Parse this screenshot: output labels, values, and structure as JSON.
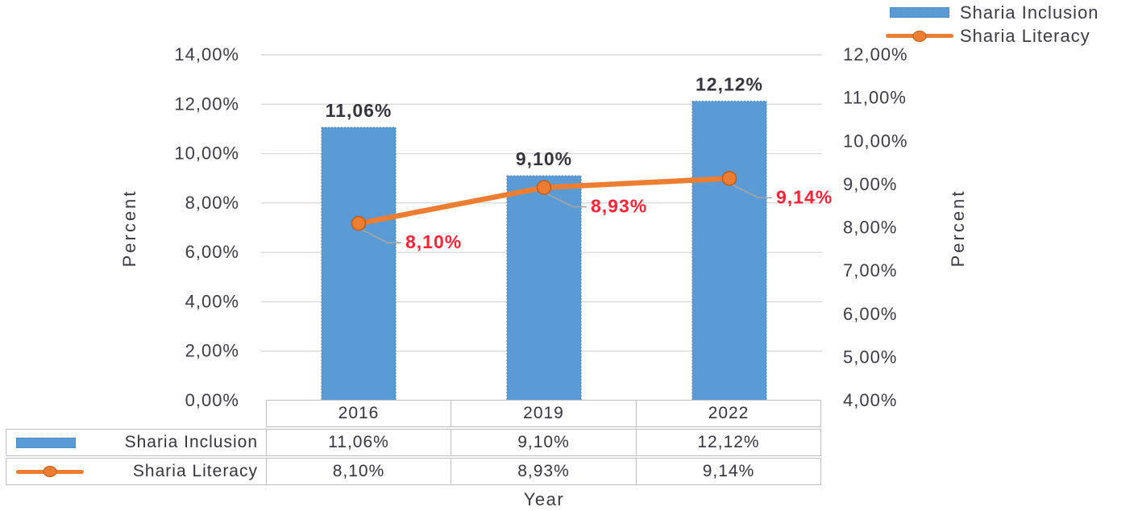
{
  "legend": {
    "items": [
      {
        "label": "Sharia Inclusion",
        "marker": "bar-swatch"
      },
      {
        "label": "Sharia Literacy",
        "marker": "line-swatch"
      }
    ]
  },
  "chart_data": {
    "type": "combo",
    "categories": [
      "2016",
      "2019",
      "2022"
    ],
    "series": [
      {
        "name": "Sharia Inclusion",
        "type": "bar",
        "axis": "left",
        "values": [
          11.06,
          9.1,
          12.12
        ],
        "labels": [
          "11,06%",
          "9,10%",
          "12,12%"
        ],
        "color": "#5B9BD5"
      },
      {
        "name": "Sharia Literacy",
        "type": "line",
        "axis": "right",
        "values": [
          8.1,
          8.93,
          9.14
        ],
        "labels": [
          "8,10%",
          "8,93%",
          "9,14%"
        ],
        "color": "#ED7D31"
      }
    ],
    "left_axis": {
      "title": "Percent",
      "min": 0,
      "max": 14,
      "step": 2,
      "ticks": [
        "14,00%",
        "12,00%",
        "10,00%",
        "8,00%",
        "6,00%",
        "4,00%",
        "2,00%",
        "0,00%"
      ]
    },
    "right_axis": {
      "title": "Percent",
      "min": 4,
      "max": 12,
      "step": 1,
      "ticks": [
        "12,00%",
        "11,00%",
        "10,00%",
        "9,00%",
        "8,00%",
        "7,00%",
        "6,00%",
        "5,00%",
        "4,00%"
      ]
    },
    "x_axis": {
      "title": "Year"
    },
    "grid": true,
    "legend_position": "top-right"
  },
  "table": {
    "columns": [
      "2016",
      "2019",
      "2022"
    ],
    "rows": [
      {
        "label": "Sharia Inclusion",
        "marker": "bar-swatch",
        "values": [
          "11,06%",
          "9,10%",
          "12,12%"
        ]
      },
      {
        "label": "Sharia Literacy",
        "marker": "line-swatch",
        "values": [
          "8,10%",
          "8,93%",
          "9,14%"
        ]
      }
    ]
  },
  "colors": {
    "bar_fill": "#5B9BD5",
    "bar_border": "#3F7FBF",
    "line": "#ED7D31",
    "marker_border": "#C45911",
    "value_label": "#35353F",
    "line_label": "#FA2336",
    "axis_text": "#3C3C46",
    "grid": "#D9D9D9",
    "table_border": "#BFBFBF",
    "leader": "#A6A6A6"
  }
}
